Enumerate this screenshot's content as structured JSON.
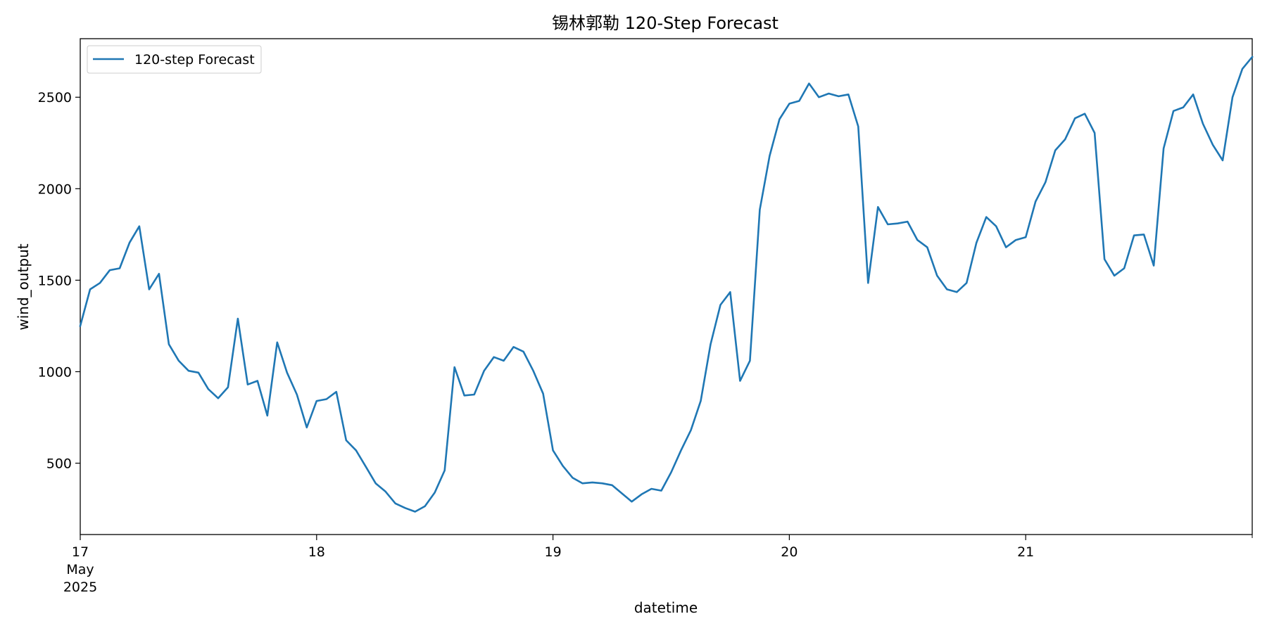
{
  "chart_data": {
    "type": "line",
    "title": "锡林郭勒 120-Step Forecast",
    "xlabel": "datetime",
    "ylabel": "wind_output",
    "x_start": "2025-05-17 00:00",
    "x_interval": "1 hour",
    "x_end": "2025-05-21 23:00",
    "xlim": [
      "2025-05-17 00:00",
      "2025-05-21 23:00"
    ],
    "ylim": [
      110,
      2820
    ],
    "x_ticks": [
      {
        "value": "2025-05-17",
        "lines": [
          "17",
          "May",
          "2025"
        ]
      },
      {
        "value": "2025-05-18",
        "lines": [
          "18"
        ]
      },
      {
        "value": "2025-05-19",
        "lines": [
          "19"
        ]
      },
      {
        "value": "2025-05-20",
        "lines": [
          "20"
        ]
      },
      {
        "value": "2025-05-21",
        "lines": [
          "21"
        ]
      }
    ],
    "y_ticks": [
      500,
      1000,
      1500,
      2000,
      2500
    ],
    "grid": false,
    "legend": {
      "position": "top-left"
    },
    "series": [
      {
        "name": "120-step Forecast",
        "color": "#1f77b4",
        "values": [
          1250,
          1450,
          1485,
          1555,
          1565,
          1705,
          1795,
          1450,
          1535,
          1150,
          1060,
          1005,
          995,
          905,
          855,
          915,
          1290,
          930,
          950,
          760,
          1160,
          995,
          875,
          695,
          840,
          850,
          890,
          625,
          570,
          480,
          390,
          345,
          280,
          255,
          235,
          265,
          340,
          460,
          1025,
          870,
          875,
          1005,
          1080,
          1060,
          1135,
          1110,
          1005,
          880,
          570,
          485,
          420,
          390,
          395,
          390,
          380,
          335,
          290,
          330,
          360,
          350,
          450,
          570,
          680,
          840,
          1150,
          1365,
          1435,
          950,
          1060,
          1885,
          2180,
          2380,
          2465,
          2480,
          2575,
          2500,
          2520,
          2505,
          2515,
          2340,
          1485,
          1900,
          1805,
          1810,
          1820,
          1720,
          1680,
          1525,
          1450,
          1435,
          1485,
          1705,
          1845,
          1795,
          1680,
          1720,
          1735,
          1930,
          2035,
          2210,
          2270,
          2385,
          2410,
          2305,
          1615,
          1525,
          1565,
          1745,
          1750,
          1580,
          2220,
          2425,
          2445,
          2515,
          2355,
          2240,
          2155,
          2500,
          2655,
          2720
        ]
      }
    ]
  }
}
